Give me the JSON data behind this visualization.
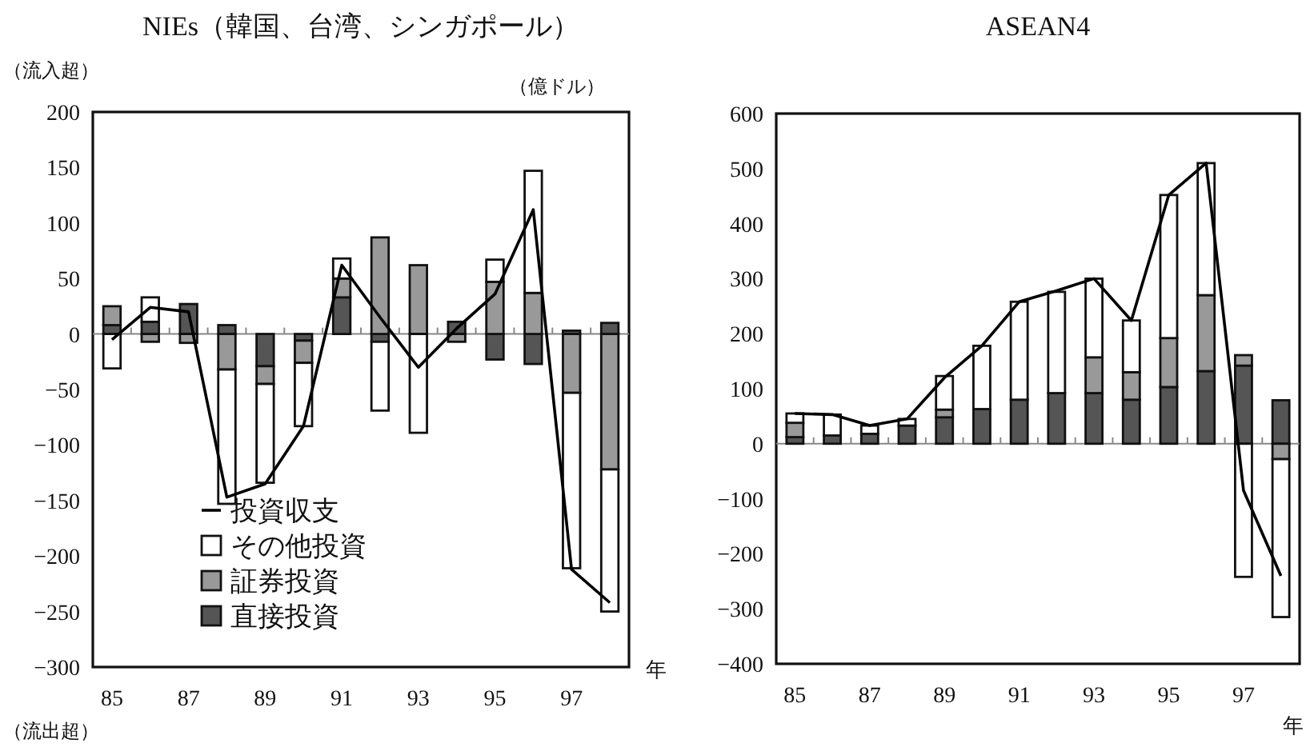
{
  "chart_data": [
    {
      "type": "bar",
      "title": "NIEs（韓国、台湾、シンガポール）",
      "xlabel": "年",
      "annotations": [
        "（流入超）",
        "（億ドル）",
        "（流出超）"
      ],
      "categories": [
        "85",
        null,
        "87",
        null,
        "89",
        null,
        "91",
        null,
        "93",
        null,
        "95",
        null,
        "97",
        null
      ],
      "stacked": true,
      "ylim": [
        -300,
        200
      ],
      "yticks": [
        -300,
        -250,
        -200,
        -150,
        -100,
        -50,
        0,
        50,
        100,
        150,
        200
      ],
      "legend": "bottom left",
      "series": [
        {
          "name": "直接投資",
          "color": "#555555",
          "values": [
            8,
            11,
            27,
            8,
            -29,
            -6,
            33,
            -7,
            0,
            11,
            -23,
            -27,
            3,
            10
          ]
        },
        {
          "name": "証券投資",
          "color": "#999999",
          "values": [
            17,
            -7,
            -8,
            -32,
            -16,
            -20,
            17,
            87,
            62,
            -7,
            47,
            37,
            -53,
            -122
          ]
        },
        {
          "name": "その他投資",
          "color": "#ffffff",
          "values": [
            -31,
            22,
            0,
            -121,
            -89,
            -57,
            18,
            -62,
            -89,
            0,
            20,
            110,
            -158,
            -128
          ]
        },
        {
          "name": "投資収支",
          "type": "line",
          "color": "#000000",
          "values": [
            -5,
            24,
            20,
            -147,
            -135,
            -83,
            62,
            15,
            -30,
            5,
            36,
            112,
            -212,
            -242
          ]
        }
      ]
    },
    {
      "type": "bar",
      "title": "ASEAN4",
      "xlabel": "年",
      "categories": [
        "85",
        null,
        "87",
        null,
        "89",
        null,
        "91",
        null,
        "93",
        null,
        "95",
        null,
        "97",
        null
      ],
      "stacked": true,
      "ylim": [
        -400,
        600
      ],
      "yticks": [
        -400,
        -300,
        -200,
        -100,
        0,
        100,
        200,
        300,
        400,
        500,
        600
      ],
      "series": [
        {
          "color": "#555555",
          "values": [
            12,
            15,
            18,
            33,
            48,
            63,
            80,
            92,
            92,
            80,
            103,
            132,
            142,
            79
          ]
        },
        {
          "color": "#999999",
          "values": [
            26,
            0,
            0,
            0,
            14,
            0,
            0,
            0,
            65,
            50,
            89,
            138,
            19,
            -28
          ]
        },
        {
          "color": "#ffffff",
          "values": [
            17,
            38,
            15,
            12,
            61,
            115,
            178,
            184,
            143,
            94,
            260,
            240,
            -242,
            -287
          ]
        },
        {
          "type": "line",
          "color": "#000000",
          "values": [
            55,
            53,
            33,
            45,
            120,
            178,
            258,
            278,
            300,
            224,
            452,
            510,
            -85,
            -240
          ]
        }
      ]
    }
  ]
}
